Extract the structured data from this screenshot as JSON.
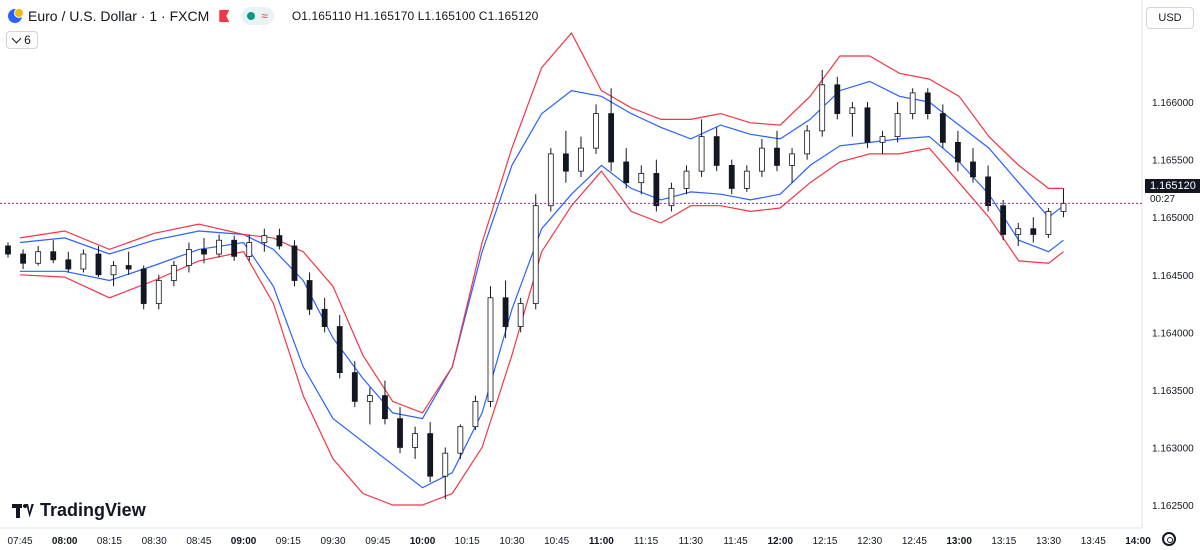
{
  "header": {
    "symbol_title": "Euro / U.S. Dollar · 1 · FXCM",
    "approx_symbol": "≈",
    "ohlc": "O1.165110 H1.165170 L1.165100 C1.165120",
    "indicator_count": "6"
  },
  "axis": {
    "currency": "USD",
    "current_price": "1.165120",
    "countdown": "00:27"
  },
  "branding": {
    "name": "TradingView"
  },
  "icons": {
    "symbol": "currency-flag-icon",
    "flag": "flag-icon",
    "status": "market-open-icon",
    "approx": "approx-icon",
    "chevron": "chevron-down-icon",
    "settings": "settings-icon",
    "logo": "tradingview-logo-icon"
  },
  "colors": {
    "up_candle": "#ffffff",
    "down_candle": "#131722",
    "band_inner": "#2962ff",
    "band_outer": "#f23645",
    "price_line": "#9c27b0",
    "grid": "#f0f3fa"
  },
  "chart_data": {
    "type": "line",
    "title": "",
    "xlabel": "",
    "ylabel": "",
    "grid": false,
    "ylim": [
      1.1623,
      1.1668
    ],
    "y_ticks": [
      "1.166000",
      "1.165500",
      "1.165000",
      "1.164500",
      "1.164000",
      "1.163500",
      "1.163000",
      "1.162500"
    ],
    "x_ticks": [
      "07:45",
      "08:00",
      "08:15",
      "08:30",
      "08:45",
      "09:00",
      "09:15",
      "09:30",
      "09:45",
      "10:00",
      "10:15",
      "10:30",
      "10:45",
      "11:00",
      "11:15",
      "11:30",
      "11:45",
      "12:00",
      "12:15",
      "12:30",
      "12:45",
      "13:00",
      "13:15",
      "13:30",
      "13:45",
      "14:00"
    ],
    "bold_x_ticks": [
      "08:00",
      "09:00",
      "10:00",
      "11:00",
      "12:00",
      "13:00",
      "14:00"
    ],
    "current_price": 1.16512,
    "series": [
      {
        "style": "bands-inner",
        "x": [
          "07:45",
          "08:00",
          "08:15",
          "08:30",
          "08:45",
          "09:00",
          "09:10",
          "09:20",
          "09:30",
          "09:40",
          "09:50",
          "10:00",
          "10:10",
          "10:20",
          "10:30",
          "10:40",
          "10:50",
          "11:00",
          "11:10",
          "11:20",
          "11:30",
          "11:40",
          "11:50",
          "12:00",
          "12:10",
          "12:20",
          "12:30",
          "12:40",
          "12:50",
          "13:00",
          "13:10",
          "13:20",
          "13:30",
          "13:35"
        ],
        "upper": [
          1.16478,
          1.16482,
          1.16468,
          1.1648,
          1.16488,
          1.16485,
          1.16472,
          1.16445,
          1.16395,
          1.1636,
          1.1633,
          1.16325,
          1.1637,
          1.1647,
          1.16545,
          1.1659,
          1.1661,
          1.16605,
          1.1659,
          1.16578,
          1.16568,
          1.1658,
          1.16572,
          1.16568,
          1.16585,
          1.1661,
          1.16618,
          1.16605,
          1.166,
          1.1658,
          1.1656,
          1.1653,
          1.165,
          1.1651
        ],
        "lower": [
          1.16453,
          1.16453,
          1.16445,
          1.16458,
          1.16472,
          1.16478,
          1.1644,
          1.1637,
          1.16325,
          1.16305,
          1.16285,
          1.16265,
          1.16278,
          1.1633,
          1.1642,
          1.1649,
          1.1652,
          1.16545,
          1.16525,
          1.16515,
          1.16522,
          1.1652,
          1.16515,
          1.1652,
          1.16545,
          1.16562,
          1.16565,
          1.16568,
          1.1657,
          1.16548,
          1.1652,
          1.1648,
          1.1647,
          1.1648
        ]
      },
      {
        "style": "bands-outer",
        "x": [
          "07:45",
          "08:00",
          "08:15",
          "08:30",
          "08:45",
          "09:00",
          "09:10",
          "09:20",
          "09:30",
          "09:40",
          "09:50",
          "10:00",
          "10:10",
          "10:20",
          "10:30",
          "10:40",
          "10:50",
          "11:00",
          "11:10",
          "11:20",
          "11:30",
          "11:40",
          "11:50",
          "12:00",
          "12:10",
          "12:20",
          "12:30",
          "12:40",
          "12:50",
          "13:00",
          "13:10",
          "13:20",
          "13:30",
          "13:35"
        ],
        "upper": [
          1.16482,
          1.16488,
          1.16472,
          1.16486,
          1.16494,
          1.16485,
          1.16482,
          1.1647,
          1.1644,
          1.1638,
          1.1634,
          1.1633,
          1.1637,
          1.16478,
          1.1656,
          1.1663,
          1.1666,
          1.1661,
          1.16595,
          1.16585,
          1.16585,
          1.1659,
          1.16582,
          1.1658,
          1.16605,
          1.1664,
          1.1664,
          1.16625,
          1.1662,
          1.16605,
          1.1657,
          1.16545,
          1.16525,
          1.16525
        ],
        "lower": [
          1.1645,
          1.16448,
          1.1643,
          1.16445,
          1.16462,
          1.1647,
          1.16425,
          1.16345,
          1.1629,
          1.1626,
          1.1625,
          1.1625,
          1.1626,
          1.163,
          1.1638,
          1.1647,
          1.1651,
          1.1654,
          1.16505,
          1.16495,
          1.1651,
          1.1651,
          1.16505,
          1.16508,
          1.1653,
          1.16548,
          1.16555,
          1.16555,
          1.1656,
          1.1653,
          1.165,
          1.16462,
          1.1646,
          1.1647
        ]
      }
    ],
    "candles": [
      [
        1.16475,
        1.16478,
        1.16465,
        1.16468
      ],
      [
        1.16468,
        1.16472,
        1.16455,
        1.1646
      ],
      [
        1.1646,
        1.16475,
        1.16458,
        1.1647
      ],
      [
        1.1647,
        1.1648,
        1.1646,
        1.16463
      ],
      [
        1.16463,
        1.1647,
        1.16452,
        1.16455
      ],
      [
        1.16455,
        1.16472,
        1.16452,
        1.16468
      ],
      [
        1.16468,
        1.16475,
        1.16448,
        1.1645
      ],
      [
        1.1645,
        1.16462,
        1.1644,
        1.16458
      ],
      [
        1.16458,
        1.1647,
        1.1645,
        1.16455
      ],
      [
        1.16455,
        1.16458,
        1.1642,
        1.16425
      ],
      [
        1.16425,
        1.1645,
        1.1642,
        1.16445
      ],
      [
        1.16445,
        1.16462,
        1.1644,
        1.16458
      ],
      [
        1.16458,
        1.16478,
        1.16452,
        1.16472
      ],
      [
        1.16472,
        1.16482,
        1.1646,
        1.16468
      ],
      [
        1.16468,
        1.16485,
        1.16465,
        1.1648
      ],
      [
        1.1648,
        1.16484,
        1.16462,
        1.16466
      ],
      [
        1.16466,
        1.16485,
        1.16462,
        1.16478
      ],
      [
        1.16478,
        1.1649,
        1.1647,
        1.16484
      ],
      [
        1.16484,
        1.1649,
        1.16472,
        1.16475
      ],
      [
        1.16475,
        1.1648,
        1.1644,
        1.16445
      ],
      [
        1.16445,
        1.16452,
        1.16415,
        1.1642
      ],
      [
        1.1642,
        1.1643,
        1.164,
        1.16405
      ],
      [
        1.16405,
        1.16415,
        1.1636,
        1.16365
      ],
      [
        1.16365,
        1.16375,
        1.16335,
        1.1634
      ],
      [
        1.1634,
        1.16352,
        1.1632,
        1.16345
      ],
      [
        1.16345,
        1.16358,
        1.1632,
        1.16325
      ],
      [
        1.16325,
        1.16335,
        1.16295,
        1.163
      ],
      [
        1.163,
        1.16318,
        1.1629,
        1.16312
      ],
      [
        1.16312,
        1.16322,
        1.1627,
        1.16275
      ],
      [
        1.16275,
        1.163,
        1.16255,
        1.16295
      ],
      [
        1.16295,
        1.1632,
        1.1629,
        1.16318
      ],
      [
        1.16318,
        1.16345,
        1.16315,
        1.1634
      ],
      [
        1.1634,
        1.1644,
        1.16335,
        1.1643
      ],
      [
        1.1643,
        1.16445,
        1.16395,
        1.16405
      ],
      [
        1.16405,
        1.1643,
        1.164,
        1.16425
      ],
      [
        1.16425,
        1.1652,
        1.1642,
        1.1651
      ],
      [
        1.1651,
        1.1656,
        1.16505,
        1.16555
      ],
      [
        1.16555,
        1.16575,
        1.1653,
        1.1654
      ],
      [
        1.1654,
        1.1657,
        1.16535,
        1.1656
      ],
      [
        1.1656,
        1.16598,
        1.16555,
        1.1659
      ],
      [
        1.1659,
        1.16612,
        1.1654,
        1.16548
      ],
      [
        1.16548,
        1.1656,
        1.16525,
        1.1653
      ],
      [
        1.1653,
        1.16545,
        1.1652,
        1.16538
      ],
      [
        1.16538,
        1.1655,
        1.16505,
        1.1651
      ],
      [
        1.1651,
        1.1653,
        1.16505,
        1.16525
      ],
      [
        1.16525,
        1.16545,
        1.1652,
        1.1654
      ],
      [
        1.1654,
        1.16585,
        1.16535,
        1.1657
      ],
      [
        1.1657,
        1.16578,
        1.1654,
        1.16545
      ],
      [
        1.16545,
        1.1655,
        1.1652,
        1.16525
      ],
      [
        1.16525,
        1.16545,
        1.16522,
        1.1654
      ],
      [
        1.1654,
        1.16568,
        1.16535,
        1.1656
      ],
      [
        1.1656,
        1.16575,
        1.1654,
        1.16545
      ],
      [
        1.16545,
        1.1656,
        1.1653,
        1.16555
      ],
      [
        1.16555,
        1.1658,
        1.1655,
        1.16575
      ],
      [
        1.16575,
        1.16628,
        1.1657,
        1.16615
      ],
      [
        1.16615,
        1.16622,
        1.16585,
        1.1659
      ],
      [
        1.1659,
        1.166,
        1.1657,
        1.16595
      ],
      [
        1.16595,
        1.166,
        1.1656,
        1.16565
      ],
      [
        1.16565,
        1.16575,
        1.16555,
        1.1657
      ],
      [
        1.1657,
        1.166,
        1.16565,
        1.1659
      ],
      [
        1.1659,
        1.16612,
        1.16585,
        1.16608
      ],
      [
        1.16608,
        1.16612,
        1.16585,
        1.1659
      ],
      [
        1.1659,
        1.16598,
        1.1656,
        1.16565
      ],
      [
        1.16565,
        1.16575,
        1.1654,
        1.16548
      ],
      [
        1.16548,
        1.1656,
        1.1653,
        1.16535
      ],
      [
        1.16535,
        1.16545,
        1.16505,
        1.1651
      ],
      [
        1.1651,
        1.16515,
        1.1648,
        1.16485
      ],
      [
        1.16485,
        1.16495,
        1.16475,
        1.1649
      ],
      [
        1.1649,
        1.165,
        1.16478,
        1.16485
      ],
      [
        1.16485,
        1.16508,
        1.16482,
        1.16505
      ],
      [
        1.16505,
        1.16525,
        1.165,
        1.16512
      ]
    ]
  }
}
